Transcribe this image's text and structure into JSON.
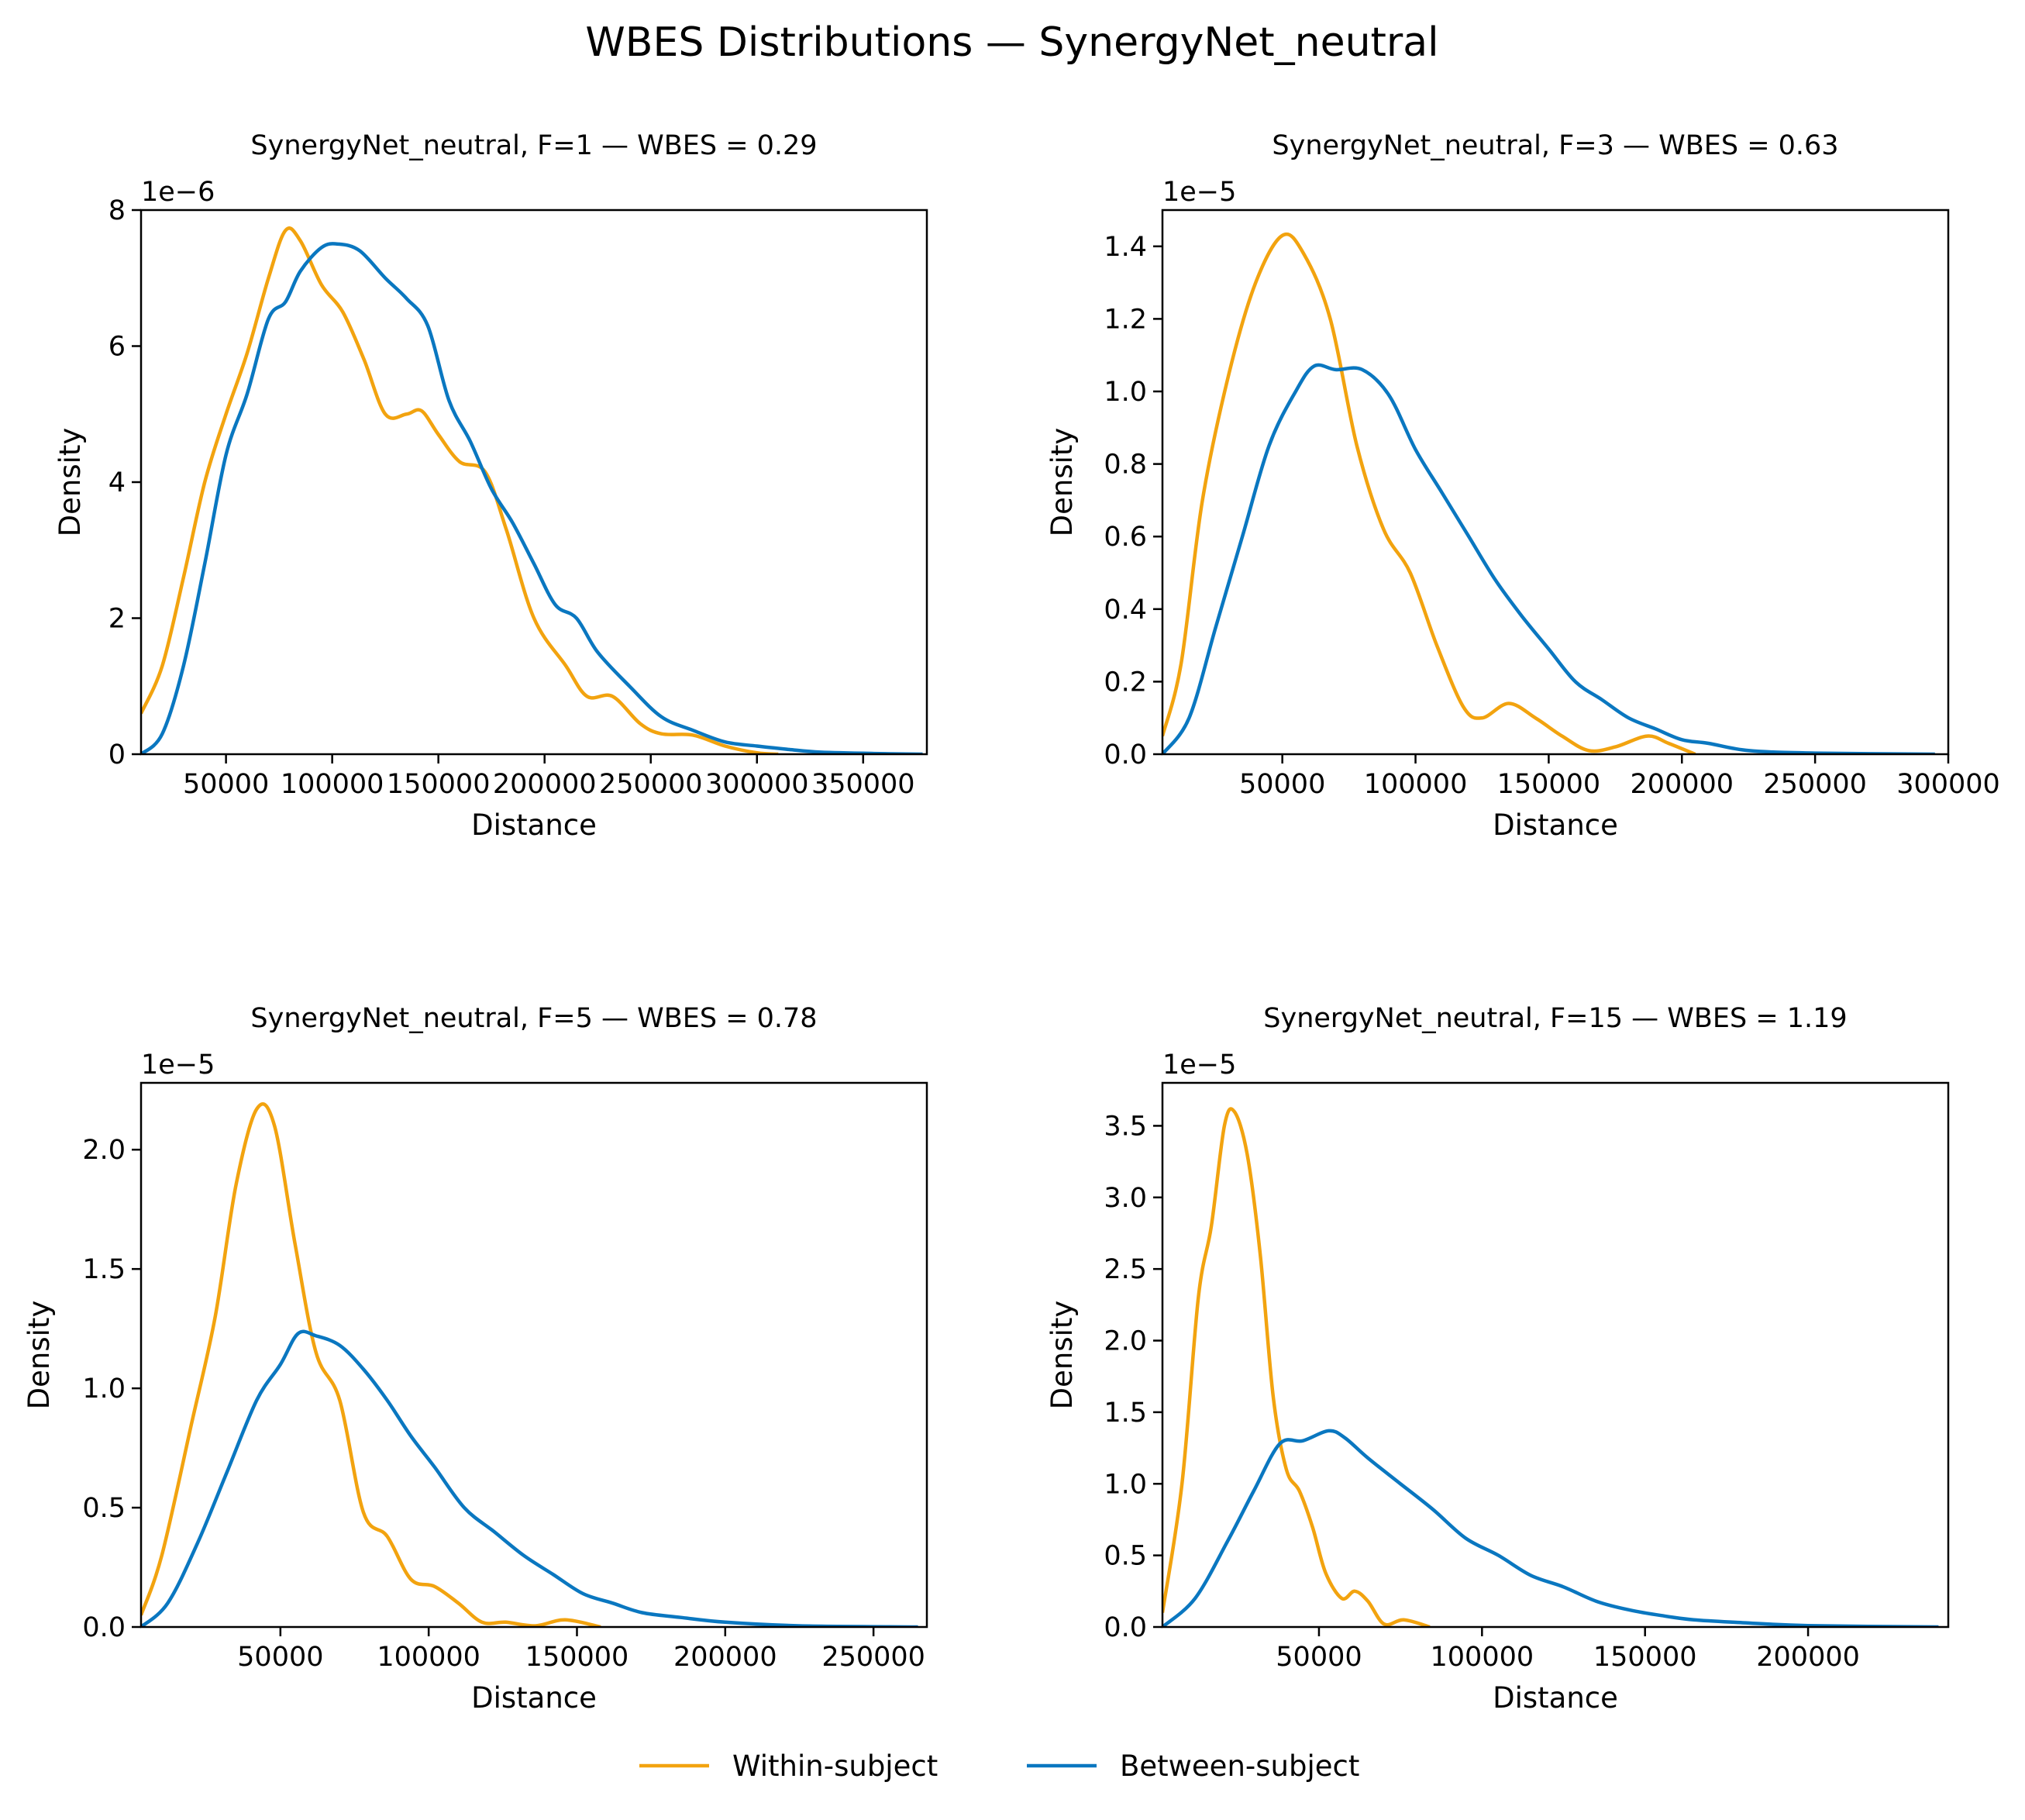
{
  "figure": {
    "title": "WBES Distributions — SynergyNet_neutral",
    "legend": [
      {
        "label": "Within-subject",
        "color": "#F2A30F"
      },
      {
        "label": "Between-subject",
        "color": "#0A77C0"
      }
    ]
  },
  "chart_data": [
    {
      "type": "line",
      "title": "SynergyNet_neutral, F=1 — WBES = 0.29",
      "xlabel": "Distance",
      "ylabel": "Density",
      "y_offset_label": "1e−6",
      "xlim": [
        10000,
        380000
      ],
      "ylim": [
        0,
        8e-06
      ],
      "x_ticks": [
        50000,
        100000,
        150000,
        200000,
        250000,
        300000,
        350000
      ],
      "x_tick_labels": [
        "50000",
        "100000",
        "150000",
        "200000",
        "250000",
        "300000",
        "350000"
      ],
      "y_ticks": [
        0,
        2e-06,
        4e-06,
        6e-06,
        8e-06
      ],
      "y_tick_labels": [
        "0",
        "2",
        "4",
        "6",
        "8"
      ],
      "series": [
        {
          "name": "Within-subject",
          "color": "#F2A30F",
          "points": [
            [
              10000,
              6e-07
            ],
            [
              20000,
              1.3e-06
            ],
            [
              30000,
              2.6e-06
            ],
            [
              40000,
              4e-06
            ],
            [
              50000,
              5e-06
            ],
            [
              60000,
              5.9e-06
            ],
            [
              70000,
              7e-06
            ],
            [
              78000,
              7.7e-06
            ],
            [
              85000,
              7.55e-06
            ],
            [
              95000,
              6.9e-06
            ],
            [
              105000,
              6.5e-06
            ],
            [
              115000,
              5.8e-06
            ],
            [
              125000,
              5e-06
            ],
            [
              135000,
              5e-06
            ],
            [
              142000,
              5.05e-06
            ],
            [
              150000,
              4.7e-06
            ],
            [
              160000,
              4.3e-06
            ],
            [
              172000,
              4.15e-06
            ],
            [
              182000,
              3.3e-06
            ],
            [
              195000,
              2e-06
            ],
            [
              210000,
              1.3e-06
            ],
            [
              220000,
              8.5e-07
            ],
            [
              232000,
              8.5e-07
            ],
            [
              245000,
              4.5e-07
            ],
            [
              255000,
              3e-07
            ],
            [
              270000,
              2.8e-07
            ],
            [
              285000,
              1.2e-07
            ],
            [
              300000,
              2e-08
            ],
            [
              310000,
              0
            ]
          ]
        },
        {
          "name": "Between-subject",
          "color": "#0A77C0",
          "points": [
            [
              10000,
              0
            ],
            [
              20000,
              3e-07
            ],
            [
              30000,
              1.3e-06
            ],
            [
              40000,
              2.8e-06
            ],
            [
              50000,
              4.4e-06
            ],
            [
              60000,
              5.3e-06
            ],
            [
              70000,
              6.4e-06
            ],
            [
              78000,
              6.65e-06
            ],
            [
              85000,
              7.1e-06
            ],
            [
              95000,
              7.45e-06
            ],
            [
              103000,
              7.5e-06
            ],
            [
              113000,
              7.4e-06
            ],
            [
              125000,
              7e-06
            ],
            [
              135000,
              6.7e-06
            ],
            [
              145000,
              6.3e-06
            ],
            [
              155000,
              5.2e-06
            ],
            [
              165000,
              4.6e-06
            ],
            [
              175000,
              3.9e-06
            ],
            [
              185000,
              3.4e-06
            ],
            [
              195000,
              2.8e-06
            ],
            [
              205000,
              2.2e-06
            ],
            [
              215000,
              2e-06
            ],
            [
              225000,
              1.5e-06
            ],
            [
              240000,
              1e-06
            ],
            [
              255000,
              5.5e-07
            ],
            [
              270000,
              3.5e-07
            ],
            [
              285000,
              1.8e-07
            ],
            [
              300000,
              1.2e-07
            ],
            [
              315000,
              7e-08
            ],
            [
              330000,
              3e-08
            ],
            [
              355000,
              1e-08
            ],
            [
              378000,
              0
            ]
          ]
        }
      ]
    },
    {
      "type": "line",
      "title": "SynergyNet_neutral, F=3 — WBES = 0.63",
      "xlabel": "Distance",
      "ylabel": "Density",
      "y_offset_label": "1e−5",
      "xlim": [
        5000,
        300000
      ],
      "ylim": [
        0,
        1.5e-05
      ],
      "x_ticks": [
        50000,
        100000,
        150000,
        200000,
        250000,
        300000
      ],
      "x_tick_labels": [
        "50000",
        "100000",
        "150000",
        "200000",
        "250000",
        "300000"
      ],
      "y_ticks": [
        0,
        2e-06,
        4e-06,
        6e-06,
        8e-06,
        1e-05,
        1.2e-05,
        1.4e-05
      ],
      "y_tick_labels": [
        "0.0",
        "0.2",
        "0.4",
        "0.6",
        "0.8",
        "1.0",
        "1.2",
        "1.4"
      ],
      "series": [
        {
          "name": "Within-subject",
          "color": "#F2A30F",
          "points": [
            [
              5000,
              5e-07
            ],
            [
              12000,
              2.5e-06
            ],
            [
              20000,
              7e-06
            ],
            [
              30000,
              1.05e-05
            ],
            [
              40000,
              1.3e-05
            ],
            [
              50000,
              1.43e-05
            ],
            [
              58000,
              1.38e-05
            ],
            [
              68000,
              1.2e-05
            ],
            [
              78000,
              8.5e-06
            ],
            [
              88000,
              6.2e-06
            ],
            [
              98000,
              5e-06
            ],
            [
              108000,
              3e-06
            ],
            [
              118000,
              1.3e-06
            ],
            [
              125000,
              1e-06
            ],
            [
              135000,
              1.4e-06
            ],
            [
              145000,
              1e-06
            ],
            [
              155000,
              5e-07
            ],
            [
              165000,
              1e-07
            ],
            [
              175000,
              2e-07
            ],
            [
              187000,
              5e-07
            ],
            [
              195000,
              3e-07
            ],
            [
              205000,
              0
            ]
          ]
        },
        {
          "name": "Between-subject",
          "color": "#0A77C0",
          "points": [
            [
              5000,
              0
            ],
            [
              15000,
              1e-06
            ],
            [
              25000,
              3.5e-06
            ],
            [
              35000,
              6e-06
            ],
            [
              45000,
              8.5e-06
            ],
            [
              55000,
              1e-05
            ],
            [
              62000,
              1.07e-05
            ],
            [
              70000,
              1.06e-05
            ],
            [
              80000,
              1.06e-05
            ],
            [
              90000,
              9.9e-06
            ],
            [
              100000,
              8.4e-06
            ],
            [
              110000,
              7.2e-06
            ],
            [
              120000,
              6e-06
            ],
            [
              130000,
              4.8e-06
            ],
            [
              140000,
              3.8e-06
            ],
            [
              150000,
              2.9e-06
            ],
            [
              160000,
              2e-06
            ],
            [
              170000,
              1.5e-06
            ],
            [
              180000,
              1e-06
            ],
            [
              190000,
              7e-07
            ],
            [
              200000,
              4e-07
            ],
            [
              210000,
              3e-07
            ],
            [
              225000,
              1e-07
            ],
            [
              250000,
              3e-08
            ],
            [
              295000,
              0
            ]
          ]
        }
      ]
    },
    {
      "type": "line",
      "title": "SynergyNet_neutral, F=5 — WBES = 0.78",
      "xlabel": "Distance",
      "ylabel": "Density",
      "y_offset_label": "1e−5",
      "xlim": [
        3000,
        268000
      ],
      "ylim": [
        0,
        2.28e-05
      ],
      "x_ticks": [
        50000,
        100000,
        150000,
        200000,
        250000
      ],
      "x_tick_labels": [
        "50000",
        "100000",
        "150000",
        "200000",
        "250000"
      ],
      "y_ticks": [
        0,
        5e-06,
        1e-05,
        1.5e-05,
        2e-05
      ],
      "y_tick_labels": [
        "0.0",
        "0.5",
        "1.0",
        "1.5",
        "2.0"
      ],
      "series": [
        {
          "name": "Within-subject",
          "color": "#F2A30F",
          "points": [
            [
              3000,
              5e-07
            ],
            [
              10000,
              3e-06
            ],
            [
              20000,
              8.5e-06
            ],
            [
              28000,
              1.3e-05
            ],
            [
              35000,
              1.85e-05
            ],
            [
              42000,
              2.17e-05
            ],
            [
              48000,
              2.1e-05
            ],
            [
              55000,
              1.6e-05
            ],
            [
              62000,
              1.15e-05
            ],
            [
              70000,
              9.5e-06
            ],
            [
              78000,
              4.8e-06
            ],
            [
              86000,
              3.8e-06
            ],
            [
              94000,
              2e-06
            ],
            [
              102000,
              1.7e-06
            ],
            [
              110000,
              1e-06
            ],
            [
              118000,
              2e-07
            ],
            [
              126000,
              2e-07
            ],
            [
              136000,
              5e-08
            ],
            [
              146000,
              3e-07
            ],
            [
              158000,
              0
            ]
          ]
        },
        {
          "name": "Between-subject",
          "color": "#0A77C0",
          "points": [
            [
              3000,
              0
            ],
            [
              12000,
              1e-06
            ],
            [
              22000,
              3.5e-06
            ],
            [
              32000,
              6.5e-06
            ],
            [
              42000,
              9.5e-06
            ],
            [
              50000,
              1.1e-05
            ],
            [
              56000,
              1.23e-05
            ],
            [
              62000,
              1.22e-05
            ],
            [
              70000,
              1.18e-05
            ],
            [
              78000,
              1.08e-05
            ],
            [
              86000,
              9.5e-06
            ],
            [
              94000,
              8e-06
            ],
            [
              102000,
              6.7e-06
            ],
            [
              112000,
              5e-06
            ],
            [
              122000,
              4e-06
            ],
            [
              132000,
              3e-06
            ],
            [
              142000,
              2.2e-06
            ],
            [
              152000,
              1.4e-06
            ],
            [
              162000,
              1e-06
            ],
            [
              172000,
              6e-07
            ],
            [
              185000,
              4e-07
            ],
            [
              200000,
              2e-07
            ],
            [
              225000,
              5e-08
            ],
            [
              265000,
              0
            ]
          ]
        }
      ]
    },
    {
      "type": "line",
      "title": "SynergyNet_neutral, F=15 — WBES = 1.19",
      "xlabel": "Distance",
      "ylabel": "Density",
      "y_offset_label": "1e−5",
      "xlim": [
        2000,
        243000
      ],
      "ylim": [
        0,
        3.8e-05
      ],
      "x_ticks": [
        50000,
        100000,
        150000,
        200000
      ],
      "x_tick_labels": [
        "50000",
        "100000",
        "150000",
        "200000"
      ],
      "y_ticks": [
        0,
        5e-06,
        1e-05,
        1.5e-05,
        2e-05,
        2.5e-05,
        3e-05,
        3.5e-05
      ],
      "y_tick_labels": [
        "0.0",
        "0.5",
        "1.0",
        "1.5",
        "2.0",
        "2.5",
        "3.0",
        "3.5"
      ],
      "series": [
        {
          "name": "Within-subject",
          "color": "#F2A30F",
          "points": [
            [
              2000,
              1e-06
            ],
            [
              8000,
              1e-05
            ],
            [
              13000,
              2.3e-05
            ],
            [
              17000,
              2.8e-05
            ],
            [
              21000,
              3.5e-05
            ],
            [
              24000,
              3.6e-05
            ],
            [
              28000,
              3.3e-05
            ],
            [
              32000,
              2.6e-05
            ],
            [
              36000,
              1.6e-05
            ],
            [
              40000,
              1.1e-05
            ],
            [
              44000,
              9.5e-06
            ],
            [
              48000,
              7e-06
            ],
            [
              52000,
              3.8e-06
            ],
            [
              57000,
              2e-06
            ],
            [
              61000,
              2.5e-06
            ],
            [
              65000,
              1.8e-06
            ],
            [
              70000,
              2e-07
            ],
            [
              76000,
              5e-07
            ],
            [
              84000,
              0
            ]
          ]
        },
        {
          "name": "Between-subject",
          "color": "#0A77C0",
          "points": [
            [
              2000,
              0
            ],
            [
              12000,
              2e-06
            ],
            [
              22000,
              6e-06
            ],
            [
              30000,
              9.5e-06
            ],
            [
              38000,
              1.28e-05
            ],
            [
              45000,
              1.3e-05
            ],
            [
              53000,
              1.37e-05
            ],
            [
              58000,
              1.32e-05
            ],
            [
              65000,
              1.18e-05
            ],
            [
              75000,
              1e-05
            ],
            [
              85000,
              8.2e-06
            ],
            [
              95000,
              6.2e-06
            ],
            [
              105000,
              5e-06
            ],
            [
              115000,
              3.6e-06
            ],
            [
              125000,
              2.8e-06
            ],
            [
              135000,
              1.8e-06
            ],
            [
              145000,
              1.2e-06
            ],
            [
              155000,
              8e-07
            ],
            [
              165000,
              5e-07
            ],
            [
              180000,
              3e-07
            ],
            [
              200000,
              1e-07
            ],
            [
              240000,
              0
            ]
          ]
        }
      ]
    }
  ]
}
